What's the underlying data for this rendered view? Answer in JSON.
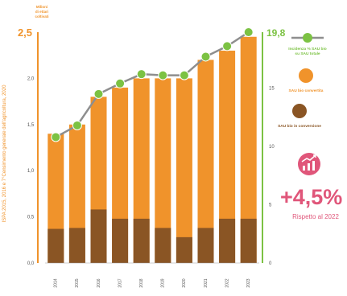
{
  "source_note": "ISPA 2015, 2016 e 7°Censimento generale dell'agricoltura, 2020",
  "stat": {
    "value": "+4,5%",
    "caption": "Rispetto al 2022"
  },
  "colors": {
    "total_bar": "#f0932b",
    "conversion_bar": "#8a5524",
    "line": "#8e8e8e",
    "line_point": "#7cc243",
    "right_axis": "#7cc243",
    "left_axis": "#f0932b",
    "accent": "#e0567a"
  },
  "icon": "chart-growth-icon",
  "chart_data": {
    "type": "bar",
    "categories": [
      "2014",
      "2015",
      "2016",
      "2017",
      "2018",
      "2019",
      "2020",
      "2021",
      "2022",
      "2023"
    ],
    "ylabel": "Milioni di ettari coltivati",
    "ylim": [
      0,
      2.5
    ],
    "yticks": [
      "0,0",
      "0,5",
      "1,0",
      "1,5",
      "2,0",
      "2,5"
    ],
    "y2lim": [
      0,
      19.8
    ],
    "y2ticks": [
      "0",
      "5",
      "10",
      "15",
      "19,8"
    ],
    "legend_position": "right",
    "grid": false,
    "series": [
      {
        "name": "SAU bio convertita",
        "kind": "bar",
        "values": [
          1.4,
          1.5,
          1.8,
          1.9,
          2.0,
          2.0,
          2.0,
          2.2,
          2.3,
          2.45
        ]
      },
      {
        "name": "SAU bio in conversione",
        "kind": "bar",
        "values": [
          0.37,
          0.38,
          0.58,
          0.48,
          0.48,
          0.38,
          0.28,
          0.38,
          0.48,
          0.48
        ]
      },
      {
        "name": "Incidenza % SAU bio su SAU totale",
        "kind": "line",
        "axis": "right",
        "values": [
          10.8,
          11.8,
          14.5,
          15.4,
          16.2,
          16.1,
          16.1,
          17.7,
          18.6,
          19.8
        ]
      }
    ]
  }
}
